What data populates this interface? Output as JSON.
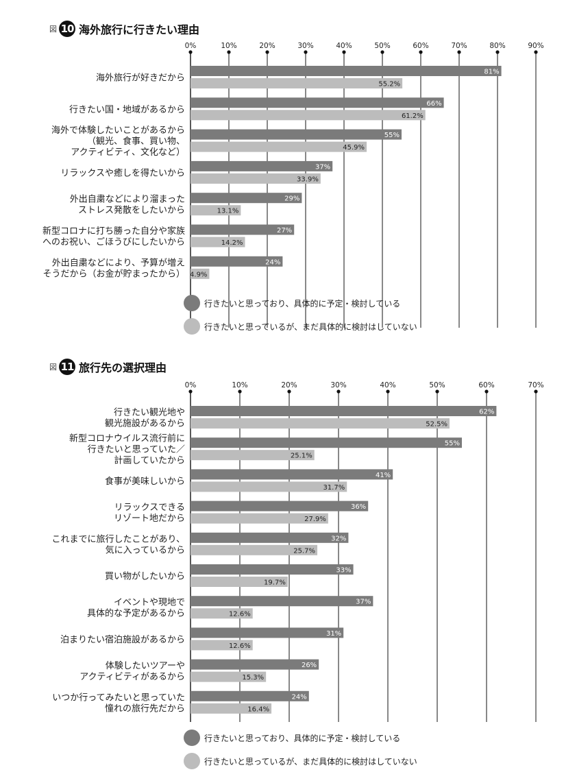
{
  "figures": [
    {
      "label": "図",
      "number": "10",
      "title": "海外旅行に行きたい理由"
    },
    {
      "label": "図",
      "number": "11",
      "title": "旅行先の選択理由"
    }
  ],
  "legend": {
    "dark": "行きたいと思っており、具体的に予定・検討している",
    "light": "行きたいと思っているが、まだ具体的に検討はしていない"
  },
  "colors": {
    "dark": "#7b7b7b",
    "light": "#bcbcbc",
    "text": "#222222"
  },
  "chart_data": [
    {
      "type": "bar",
      "orientation": "horizontal",
      "title": "海外旅行に行きたい理由",
      "x_ticks": [
        "0%",
        "10%",
        "20%",
        "30%",
        "40%",
        "50%",
        "60%",
        "70%",
        "80%",
        "90%"
      ],
      "xlim": [
        0,
        90
      ],
      "grid": true,
      "legend_position": "bottom",
      "categories": [
        "海外旅行が好きだから",
        "行きたい国・地域があるから",
        "海外で体験したいことがあるから\n（観光、食事、買い物、\nアクティビティ、文化など）",
        "リラックスや癒しを得たいから",
        "外出自粛などにより溜まった\nストレス発散をしたいから",
        "新型コロナに打ち勝った自分や家族\nへのお祝い、ごほうびにしたいから",
        "外出自粛などにより、予算が増え\nそうだから（お金が貯まったから）"
      ],
      "series": [
        {
          "name": "行きたいと思っており、具体的に予定・検討している",
          "values": [
            81,
            66,
            55,
            37,
            29,
            27,
            24
          ],
          "labels": [
            "81%",
            "66%",
            "55%",
            "37%",
            "29%",
            "27%",
            "24%"
          ]
        },
        {
          "name": "行きたいと思っているが、まだ具体的に検討はしていない",
          "values": [
            55.2,
            61.2,
            45.9,
            33.9,
            13.1,
            14.2,
            4.9
          ],
          "labels": [
            "55.2%",
            "61.2%",
            "45.9%",
            "33.9%",
            "13.1%",
            "14.2%",
            "4.9%"
          ]
        }
      ]
    },
    {
      "type": "bar",
      "orientation": "horizontal",
      "title": "旅行先の選択理由",
      "x_ticks": [
        "0%",
        "10%",
        "20%",
        "30%",
        "40%",
        "50%",
        "60%",
        "70%"
      ],
      "xlim": [
        0,
        70
      ],
      "grid": true,
      "legend_position": "bottom",
      "categories": [
        "行きたい観光地や\n観光施設があるから",
        "新型コロナウイルス流行前に\n行きたいと思っていた／\n計画していたから",
        "食事が美味しいから",
        "リラックスできる\nリゾート地だから",
        "これまでに旅行したことがあり、\n気に入っているから",
        "買い物がしたいから",
        "イベントや現地で\n具体的な予定があるから",
        "泊まりたい宿泊施設があるから",
        "体験したいツアーや\nアクティビティがあるから",
        "いつか行ってみたいと思っていた\n憧れの旅行先だから"
      ],
      "series": [
        {
          "name": "行きたいと思っており、具体的に予定・検討している",
          "values": [
            62,
            55,
            41,
            36,
            32,
            33,
            37,
            31,
            26,
            24
          ],
          "labels": [
            "62%",
            "55%",
            "41%",
            "36%",
            "32%",
            "33%",
            "37%",
            "31%",
            "26%",
            "24%"
          ]
        },
        {
          "name": "行きたいと思っているが、まだ具体的に検討はしていない",
          "values": [
            52.5,
            25.1,
            31.7,
            27.9,
            25.7,
            19.7,
            12.6,
            12.6,
            15.3,
            16.4
          ],
          "labels": [
            "52.5%",
            "25.1%",
            "31.7%",
            "27.9%",
            "25.7%",
            "19.7%",
            "12.6%",
            "12.6%",
            "15.3%",
            "16.4%"
          ]
        }
      ]
    }
  ]
}
